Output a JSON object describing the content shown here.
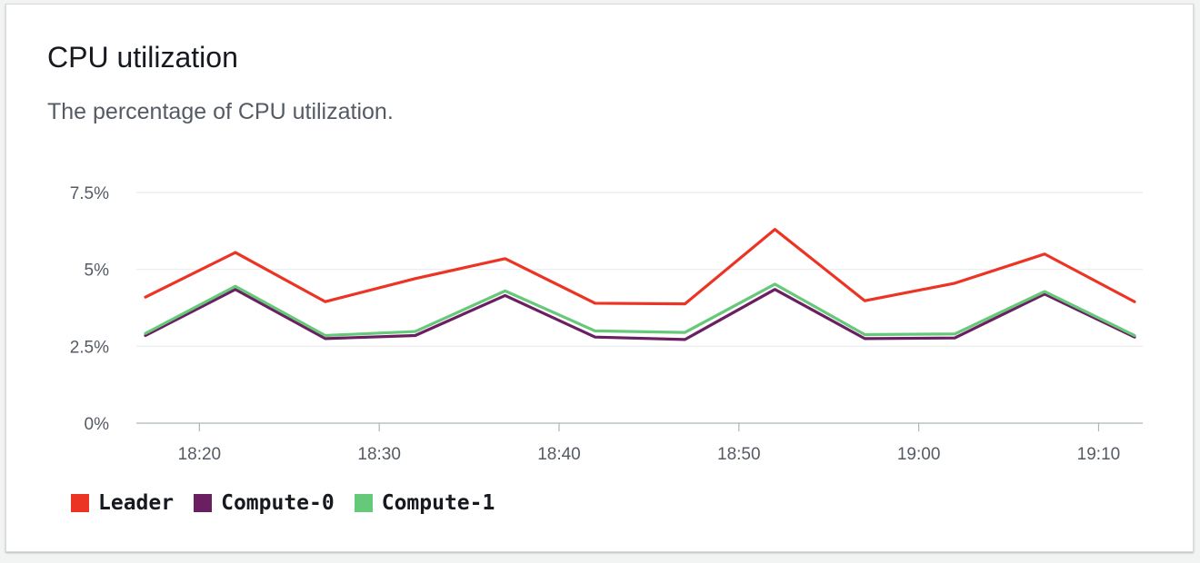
{
  "card": {
    "title": "CPU utilization",
    "subtitle": "The percentage of CPU utilization."
  },
  "chart_data": {
    "type": "line",
    "title": "CPU utilization",
    "subtitle": "The percentage of CPU utilization.",
    "xlabel": "",
    "ylabel": "",
    "x": [
      "18:17",
      "18:22",
      "18:27",
      "18:32",
      "18:37",
      "18:42",
      "18:47",
      "18:52",
      "18:57",
      "19:02",
      "19:07",
      "19:12"
    ],
    "x_ticks": [
      "18:20",
      "18:30",
      "18:40",
      "18:50",
      "19:00",
      "19:10"
    ],
    "y_ticks": [
      "0%",
      "2.5%",
      "5%",
      "7.5%"
    ],
    "ylim": [
      0,
      7.5
    ],
    "xlim": [
      "18:17",
      "19:12"
    ],
    "grid": "horizontal",
    "legend": "bottom-left",
    "series": [
      {
        "name": "Leader",
        "color": "#ec3425",
        "values": [
          4.1,
          5.55,
          3.95,
          4.7,
          5.35,
          3.9,
          3.88,
          6.3,
          3.98,
          4.55,
          5.5,
          3.95
        ]
      },
      {
        "name": "Compute-0",
        "color": "#6b1e62",
        "values": [
          2.85,
          4.35,
          2.75,
          2.85,
          4.15,
          2.8,
          2.72,
          4.35,
          2.75,
          2.77,
          4.2,
          2.8
        ]
      },
      {
        "name": "Compute-1",
        "color": "#66c97a",
        "values": [
          2.92,
          4.45,
          2.85,
          2.98,
          4.3,
          3.0,
          2.95,
          4.52,
          2.88,
          2.9,
          4.28,
          2.85
        ]
      }
    ]
  }
}
